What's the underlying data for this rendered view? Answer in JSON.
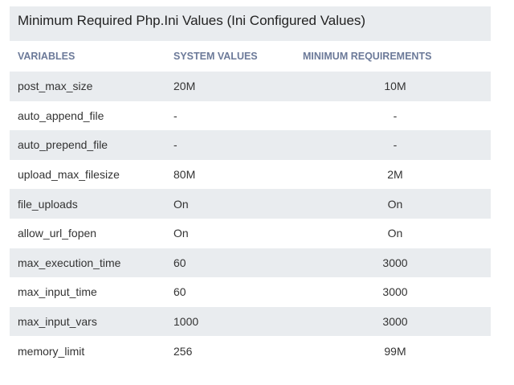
{
  "header": {
    "title": "Minimum Required Php.Ini Values (Ini Configured Values)"
  },
  "table": {
    "columns": [
      "VARIABLES",
      "SYSTEM VALUES",
      "MINIMUM REQUIREMENTS"
    ],
    "rows": [
      [
        "post_max_size",
        "20M",
        "10M"
      ],
      [
        "auto_append_file",
        "-",
        "-"
      ],
      [
        "auto_prepend_file",
        "-",
        "-"
      ],
      [
        "upload_max_filesize",
        "80M",
        "2M"
      ],
      [
        "file_uploads",
        "On",
        "On"
      ],
      [
        "allow_url_fopen",
        "On",
        "On"
      ],
      [
        "max_execution_time",
        "60",
        "3000"
      ],
      [
        "max_input_time",
        "60",
        "3000"
      ],
      [
        "max_input_vars",
        "1000",
        "3000"
      ],
      [
        "memory_limit",
        "256",
        "99M"
      ]
    ]
  }
}
